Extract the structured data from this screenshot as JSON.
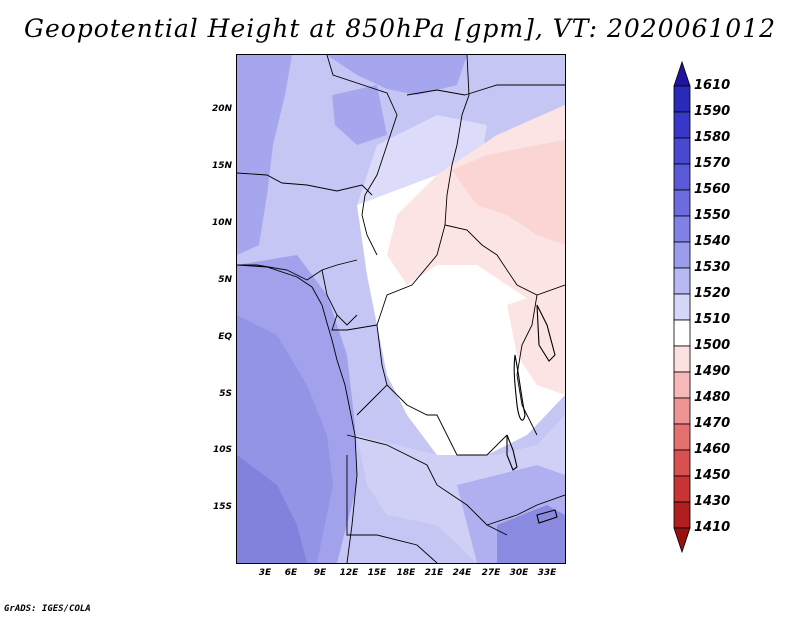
{
  "title": "Geopotential Height at 850hPa [gpm], VT: 2020061012",
  "credit": "GrADS: IGES/COLA",
  "map": {
    "projection": "lat-lon",
    "lat_labels": [
      "20N",
      "15N",
      "10N",
      "5N",
      "EQ",
      "5S",
      "10S",
      "15S"
    ],
    "lat_values": [
      20,
      15,
      10,
      5,
      0,
      -5,
      -10,
      -15
    ],
    "lon_labels": [
      "3E",
      "6E",
      "9E",
      "12E",
      "15E",
      "18E",
      "21E",
      "24E",
      "27E",
      "30E",
      "33E"
    ],
    "lon_values": [
      3,
      6,
      9,
      12,
      15,
      18,
      21,
      24,
      27,
      30,
      33
    ],
    "lon_range": [
      0,
      35
    ],
    "lat_range": [
      -20,
      24.5
    ]
  },
  "colorbar": {
    "labels": [
      "1610",
      "1590",
      "1580",
      "1570",
      "1560",
      "1550",
      "1540",
      "1530",
      "1520",
      "1510",
      "1500",
      "1490",
      "1480",
      "1470",
      "1460",
      "1450",
      "1430",
      "1410"
    ],
    "colors": [
      "#1e14a0",
      "#2a2ab8",
      "#3838c8",
      "#4848d0",
      "#5a5ad8",
      "#6c6ce0",
      "#8282e6",
      "#9c9cec",
      "#b8b8f2",
      "#d6d6f8",
      "#ffffff",
      "#fde0e0",
      "#f6b8b8",
      "#ee9494",
      "#e47070",
      "#d85050",
      "#c83434",
      "#b01e1e",
      "#981010"
    ]
  }
}
